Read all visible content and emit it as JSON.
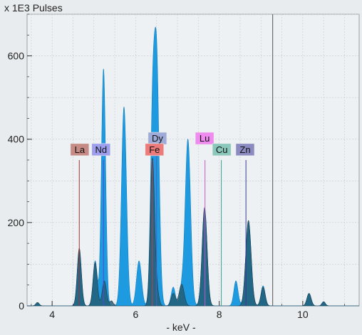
{
  "chart_data": {
    "type": "area",
    "y_unit_label": "x 1E3 Pulses",
    "x_unit_label": "- keV -",
    "xlim": [
      3.4,
      11.35
    ],
    "ylim": [
      0,
      700
    ],
    "x_ticks": [
      4,
      6,
      8,
      10
    ],
    "y_ticks": [
      0,
      200,
      400,
      600
    ],
    "x_tick_labels": [
      "4",
      "6",
      "8",
      "10"
    ],
    "y_tick_labels": [
      "0",
      "200",
      "400",
      "600"
    ],
    "cursor_kev": 9.28,
    "grid": true,
    "series": [
      {
        "key": "measured",
        "color": "#1e9be0",
        "peaks": [
          [
            3.65,
            8,
            0.04
          ],
          [
            4.65,
            130,
            0.05
          ],
          [
            5.03,
            108,
            0.05
          ],
          [
            5.23,
            570,
            0.05
          ],
          [
            5.72,
            478,
            0.06
          ],
          [
            6.08,
            108,
            0.06
          ],
          [
            6.4,
            390,
            0.05
          ],
          [
            6.5,
            592,
            0.06
          ],
          [
            6.9,
            45,
            0.05
          ],
          [
            7.1,
            38,
            0.05
          ],
          [
            7.25,
            400,
            0.065
          ],
          [
            7.65,
            228,
            0.06
          ],
          [
            8.4,
            60,
            0.05
          ],
          [
            8.7,
            200,
            0.065
          ],
          [
            9.05,
            48,
            0.05
          ],
          [
            10.15,
            30,
            0.05
          ],
          [
            10.5,
            10,
            0.04
          ]
        ]
      },
      {
        "key": "fit",
        "color": "#255e75",
        "peaks": [
          [
            3.65,
            8,
            0.04
          ],
          [
            4.65,
            138,
            0.05
          ],
          [
            5.03,
            104,
            0.05
          ],
          [
            5.25,
            60,
            0.05
          ],
          [
            5.42,
            12,
            0.04
          ],
          [
            6.4,
            350,
            0.05
          ],
          [
            6.5,
            40,
            0.05
          ],
          [
            6.9,
            30,
            0.05
          ],
          [
            7.1,
            52,
            0.06
          ],
          [
            7.65,
            236,
            0.06
          ],
          [
            8.7,
            205,
            0.065
          ],
          [
            9.05,
            45,
            0.05
          ],
          [
            10.15,
            30,
            0.05
          ],
          [
            10.5,
            10,
            0.04
          ]
        ]
      }
    ],
    "element_lines": [
      {
        "label": "La",
        "energy": 4.65,
        "height": 350,
        "color": "#9b3434",
        "box_color": "#c68b85",
        "label_x": 4.66,
        "label_y": 375
      },
      {
        "label": "Nd",
        "energy": 5.23,
        "height": 350,
        "color": "#4b4bd2",
        "box_color": "#9e9eef",
        "label_x": 5.17,
        "label_y": 375
      },
      {
        "label": "Dy",
        "energy": 6.5,
        "height": 395,
        "color": "#4f5fc0",
        "box_color": "#9eaad8",
        "label_x": 6.52,
        "label_y": 402
      },
      {
        "label": "Fe",
        "energy": 6.4,
        "height": 350,
        "color": "#d03a3a",
        "box_color": "#ee7b7b",
        "label_x": 6.45,
        "label_y": 375
      },
      {
        "label": "Lu",
        "energy": 7.66,
        "height": 350,
        "color": "#cc55cc",
        "box_color": "#ef8bef",
        "label_x": 7.65,
        "label_y": 402
      },
      {
        "label": "Cu",
        "energy": 8.05,
        "height": 350,
        "color": "#3aa38f",
        "box_color": "#8ac8bb",
        "label_x": 8.06,
        "label_y": 375
      },
      {
        "label": "Zn",
        "energy": 8.64,
        "height": 350,
        "color": "#3a3a95",
        "box_color": "#8b8bc2",
        "label_x": 8.62,
        "label_y": 375
      }
    ]
  }
}
